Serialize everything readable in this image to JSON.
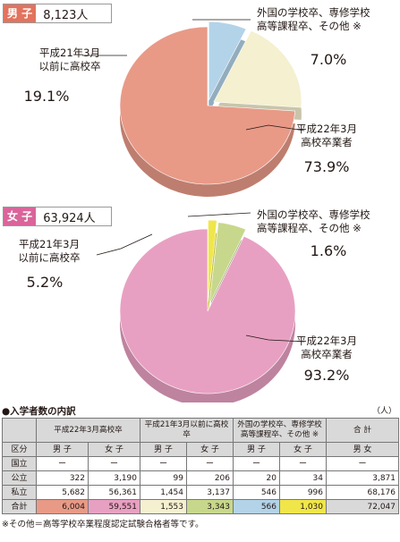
{
  "male": {
    "tag": "男 子",
    "count": "8,123人",
    "tag_color": "#e2735e",
    "segments": [
      {
        "id": "other",
        "label_lines": [
          "外国の学校卒、専修学校",
          "高等課程卒、その他 ※"
        ],
        "value": "7.0%",
        "color": "#b3d3e8"
      },
      {
        "id": "before",
        "label_lines": [
          "平成21年3月",
          "以前に高校卒"
        ],
        "value": "19.1%",
        "color": "#f4f0d0"
      },
      {
        "id": "grad",
        "label_lines": [
          "平成22年3月",
          "高校卒業者"
        ],
        "value": "73.9%",
        "color": "#e89a87"
      }
    ]
  },
  "female": {
    "tag": "女 子",
    "count": "63,924人",
    "tag_color": "#d9659a",
    "segments": [
      {
        "id": "other",
        "label_lines": [
          "外国の学校卒、専修学校",
          "高等課程卒、その他 ※"
        ],
        "value": "1.6%",
        "color": "#f0e64a"
      },
      {
        "id": "before",
        "label_lines": [
          "平成21年3月",
          "以前に高校卒"
        ],
        "value": "5.2%",
        "color": "#c7d88c"
      },
      {
        "id": "grad",
        "label_lines": [
          "平成22年3月",
          "高校卒業者"
        ],
        "value": "93.2%",
        "color": "#e8a0c2"
      }
    ]
  },
  "chart_data": [
    {
      "type": "pie",
      "title": "男 子 8,123人",
      "categories": [
        "平成22年3月高校卒業者",
        "平成21年3月以前に高校卒",
        "外国の学校卒、専修学校高等課程卒、その他 ※"
      ],
      "values": [
        73.9,
        19.1,
        7.0
      ],
      "colors": [
        "#e89a87",
        "#f4f0d0",
        "#b3d3e8"
      ]
    },
    {
      "type": "pie",
      "title": "女 子 63,924人",
      "categories": [
        "平成22年3月高校卒業者",
        "平成21年3月以前に高校卒",
        "外国の学校卒、専修学校高等課程卒、その他 ※"
      ],
      "values": [
        93.2,
        5.2,
        1.6
      ],
      "colors": [
        "#e8a0c2",
        "#c7d88c",
        "#f0e64a"
      ]
    }
  ],
  "table": {
    "title": "●入学者数の内訳",
    "unit": "（人）",
    "groups": [
      "平成22年3月高校卒",
      "平成21年3月以前に高校卒",
      "外国の学校卒、専修学校高等課程卒、その他 ※",
      "合 計"
    ],
    "sub": {
      "kubun": "区分",
      "male": "男 子",
      "female": "女 子",
      "both": "男 女"
    },
    "rows": [
      {
        "label": "国立",
        "cells": [
          "ー",
          "ー",
          "ー",
          "ー",
          "ー",
          "ー",
          "ー"
        ]
      },
      {
        "label": "公立",
        "cells": [
          "322",
          "3,190",
          "99",
          "206",
          "20",
          "34",
          "3,871"
        ]
      },
      {
        "label": "私立",
        "cells": [
          "5,682",
          "56,361",
          "1,454",
          "3,137",
          "546",
          "996",
          "68,176"
        ]
      },
      {
        "label": "合計",
        "cells": [
          "6,004",
          "59,551",
          "1,553",
          "3,343",
          "566",
          "1,030",
          "72,047"
        ]
      }
    ],
    "total_colors": [
      "#e89a87",
      "#e8a0c2",
      "#f4f0d0",
      "#c7d88c",
      "#b3d3e8",
      "#f0e64a",
      "#d9d9d9"
    ]
  },
  "note": "※その他＝高等学校卒業程度認定試験合格者等です。"
}
